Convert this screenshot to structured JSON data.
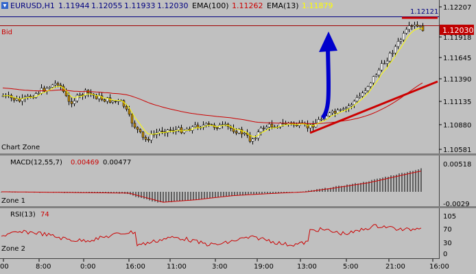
{
  "header": {
    "symbol": "EURUSD,H1",
    "open": "1.11944",
    "high": "1.12055",
    "low": "1.11933",
    "close": "1.12030",
    "ema_slow_label": "EMA(100)",
    "ema_slow_value": "1.11262",
    "ema_fast_label": "EMA(13)",
    "ema_fast_value": "1.11879",
    "top_right_value": "1.12121"
  },
  "main_pane": {
    "bid_label": "Bid",
    "zone_label": "Chart Zone",
    "price_axis": [
      "1.12207",
      "1.11918",
      "1.11645",
      "1.11390",
      "1.11135",
      "1.10880",
      "1.10581"
    ],
    "current_price": "1.12030"
  },
  "macd_pane": {
    "title": "MACD(12,55,7)",
    "value1": "0.00469",
    "value2": "0.00477",
    "zone_label": "Zone 1",
    "axis": [
      "0.00518",
      "-0.0029"
    ]
  },
  "rsi_pane": {
    "title": "RSI(13)",
    "value": "74",
    "zone_label": "Zone 2",
    "axis": [
      "105",
      "70",
      "30",
      "0"
    ]
  },
  "time_axis": [
    "00",
    "8:00",
    "0:00",
    "16:00",
    "11:00",
    "3:00",
    "19:00",
    "13:00",
    "5:00",
    "21:00",
    "16:00"
  ],
  "colors": {
    "background": "#c0c0c0",
    "candle_up": "#ffffff",
    "candle_down": "#b8860b",
    "ema_fast": "#ffff00",
    "ema_slow": "#cc0000",
    "trend_line": "#cc0000",
    "arrow": "#0000cc"
  },
  "chart_data": [
    {
      "type": "candlestick",
      "title": "EURUSD,H1",
      "ylim": [
        1.10581,
        1.12207
      ],
      "series": [
        {
          "name": "EMA(100)"
        },
        {
          "name": "EMA(13)"
        }
      ]
    },
    {
      "type": "bar",
      "title": "MACD(12,55,7)",
      "ylim": [
        -0.0029,
        0.00518
      ]
    },
    {
      "type": "line",
      "title": "RSI(13)",
      "ylim": [
        0,
        105
      ],
      "levels": [
        70,
        30
      ]
    }
  ]
}
